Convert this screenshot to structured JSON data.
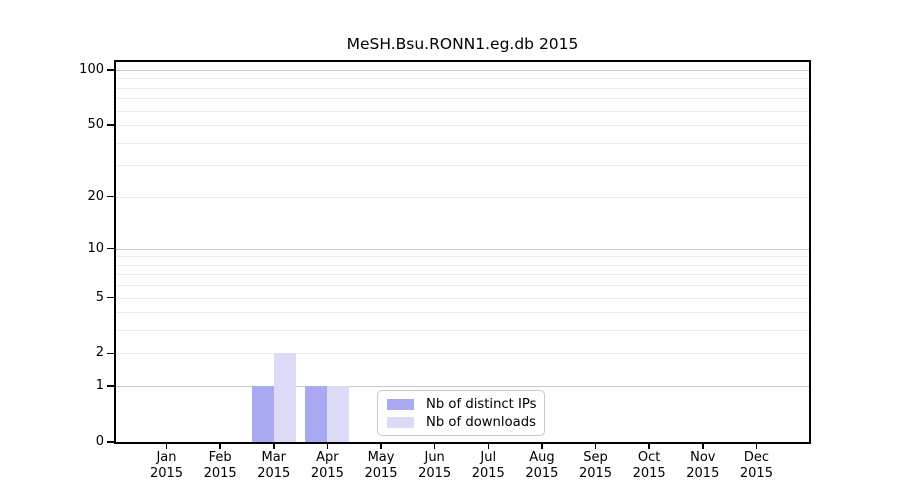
{
  "chart_data": {
    "type": "bar",
    "title": "MeSH.Bsu.RONN1.eg.db 2015",
    "months": [
      "Jan",
      "Feb",
      "Mar",
      "Apr",
      "May",
      "Jun",
      "Jul",
      "Aug",
      "Sep",
      "Oct",
      "Nov",
      "Dec"
    ],
    "year": "2015",
    "series": [
      {
        "name": "Nb of distinct IPs",
        "color": "#a9a9f2",
        "values": [
          0,
          0,
          1,
          1,
          0,
          0,
          0,
          0,
          0,
          0,
          0,
          0
        ]
      },
      {
        "name": "Nb of downloads",
        "color": "#dbdbf8",
        "values": [
          0,
          0,
          2,
          1,
          0,
          0,
          0,
          0,
          0,
          0,
          0,
          0
        ]
      }
    ],
    "y_axis": {
      "scale": "log1p",
      "ticks": [
        0,
        1,
        2,
        5,
        10,
        20,
        50,
        100
      ],
      "major_gridlines": [
        1,
        10,
        100
      ],
      "minor_gridlines": [
        2,
        3,
        4,
        5,
        6,
        7,
        8,
        9,
        20,
        30,
        40,
        50,
        60,
        70,
        80,
        90
      ],
      "ylim": [
        0,
        113
      ]
    },
    "legend": {
      "position": "lower center"
    },
    "colors": {
      "grid_major": "#c9c9c9",
      "grid_minor": "#ececec",
      "axis": "#000000",
      "text": "#000000",
      "background": "#ffffff"
    }
  }
}
